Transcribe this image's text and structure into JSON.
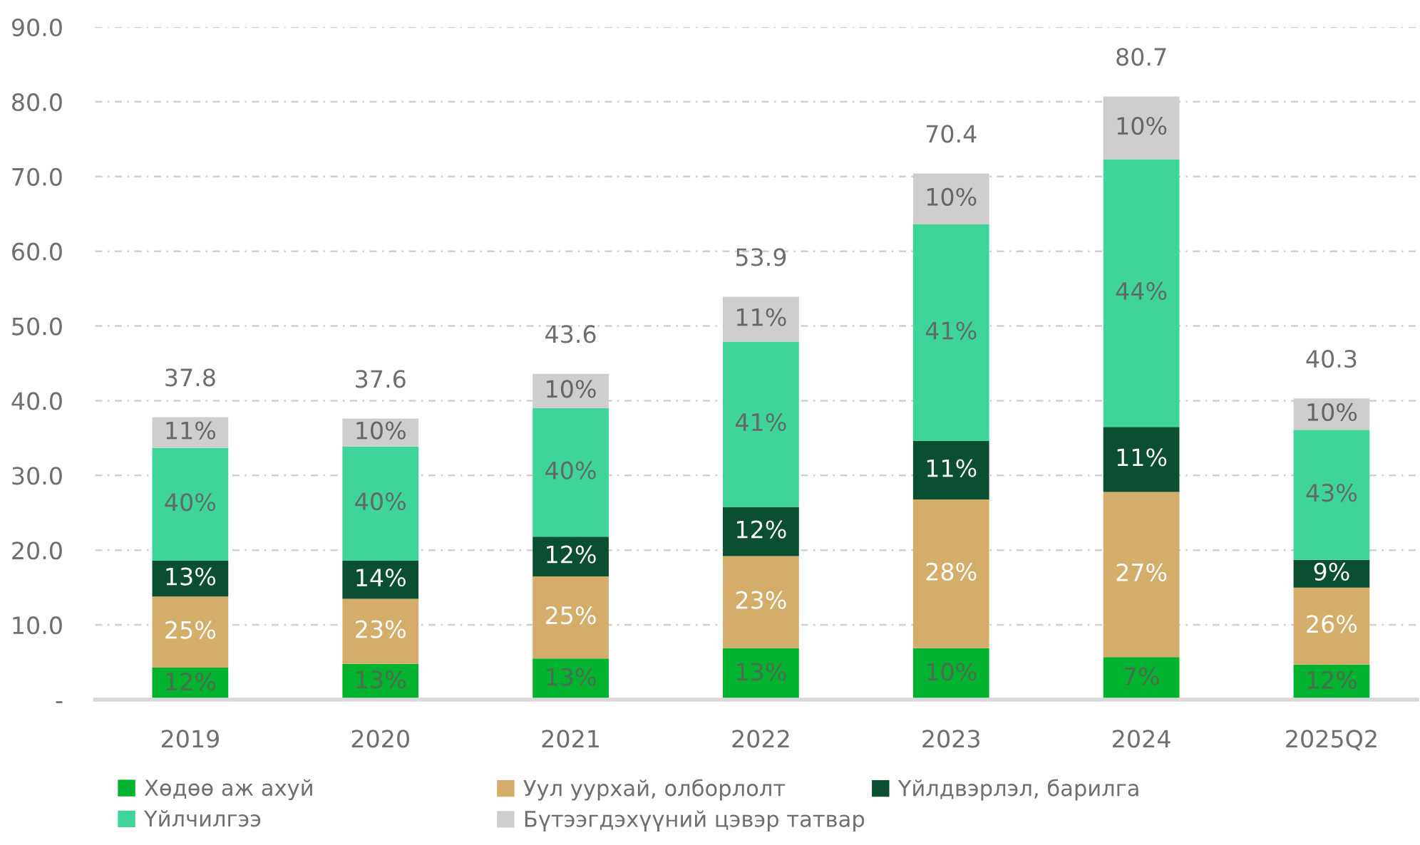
{
  "chart_data": {
    "type": "bar",
    "stacked": true,
    "categories": [
      "2019",
      "2020",
      "2021",
      "2022",
      "2023",
      "2024",
      "2025Q2"
    ],
    "series": [
      {
        "name": "Хөдөө аж ахуй",
        "color": "#00b22d",
        "values": [
          4.3,
          4.8,
          5.5,
          6.9,
          6.9,
          5.7,
          4.7
        ]
      },
      {
        "name": "Уул уурхай, олборлолт",
        "color": "#d4ad6a",
        "values": [
          9.5,
          8.7,
          11.0,
          12.3,
          19.9,
          22.1,
          10.3
        ]
      },
      {
        "name": "Үйлдвэрлэл, барилга",
        "color": "#0a4f31",
        "values": [
          4.8,
          5.1,
          5.3,
          6.6,
          7.8,
          8.7,
          3.7
        ]
      },
      {
        "name": "Үйлчилгээ",
        "color": "#3fd49a",
        "values": [
          15.1,
          15.3,
          17.2,
          22.1,
          29.0,
          35.8,
          17.4
        ]
      },
      {
        "name": "Бүтээгдэхүүний цэвэр татвар",
        "color": "#cfcdce",
        "values": [
          4.1,
          3.7,
          4.6,
          6.0,
          6.8,
          8.4,
          4.2
        ]
      }
    ],
    "totals": [
      "37.8",
      "37.6",
      "43.6",
      "53.9",
      "70.4",
      "80.7",
      "40.3"
    ],
    "annotations": [
      "12%",
      "25%",
      "13%",
      "40%",
      "11%",
      "13%",
      "23%",
      "14%",
      "40%",
      "10%",
      "13%",
      "25%",
      "12%",
      "40%",
      "10%",
      "13%",
      "23%",
      "12%",
      "41%",
      "11%",
      "10%",
      "28%",
      "11%",
      "41%",
      "10%",
      "7%",
      "27%",
      "11%",
      "44%",
      "10%",
      "12%",
      "26%",
      "9%",
      "43%",
      "10%"
    ],
    "ylim": [
      0,
      90
    ],
    "yticks": [
      {
        "value": 0,
        "label": "-"
      },
      {
        "value": 10,
        "label": "10.0"
      },
      {
        "value": 20,
        "label": "20.0"
      },
      {
        "value": 30,
        "label": "30.0"
      },
      {
        "value": 40,
        "label": "40.0"
      },
      {
        "value": 50,
        "label": "50.0"
      },
      {
        "value": 60,
        "label": "60.0"
      },
      {
        "value": 70,
        "label": "70.0"
      },
      {
        "value": 80,
        "label": "80.0"
      },
      {
        "value": 90,
        "label": "90.0"
      }
    ],
    "grid": "y",
    "legend": "bottom"
  }
}
